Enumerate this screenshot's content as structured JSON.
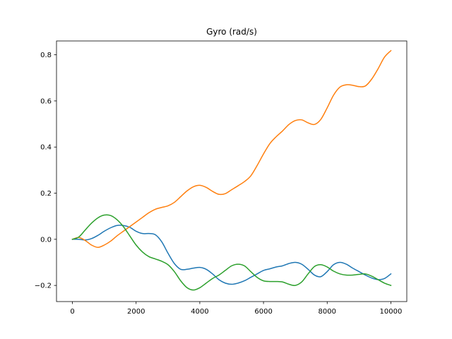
{
  "chart_data": {
    "type": "line",
    "title": "Gyro (rad/s)",
    "xlabel": "",
    "ylabel": "",
    "xlim": [
      -500,
      10500
    ],
    "ylim": [
      -0.27,
      0.86
    ],
    "xticks": [
      0,
      2000,
      4000,
      6000,
      8000,
      10000
    ],
    "xtick_labels": [
      "0",
      "2000",
      "4000",
      "6000",
      "8000",
      "10000"
    ],
    "yticks": [
      -0.2,
      0.0,
      0.2,
      0.4,
      0.6,
      0.8
    ],
    "ytick_labels": [
      "−0.2",
      "0.0",
      "0.2",
      "0.4",
      "0.6",
      "0.8"
    ],
    "grid": false,
    "legend": "none",
    "series": [
      {
        "color": "#1f77b4",
        "x": [
          0,
          200,
          400,
          600,
          800,
          1000,
          1200,
          1400,
          1600,
          1800,
          2000,
          2200,
          2400,
          2600,
          2800,
          3000,
          3200,
          3400,
          3600,
          3800,
          4000,
          4200,
          4400,
          4600,
          4800,
          5000,
          5200,
          5400,
          5600,
          5800,
          6000,
          6200,
          6400,
          6600,
          6800,
          7000,
          7200,
          7400,
          7600,
          7800,
          8000,
          8200,
          8400,
          8600,
          8800,
          9000,
          9200,
          9400,
          9600,
          9800,
          10000
        ],
        "y": [
          0.0,
          0.0,
          -0.003,
          0.003,
          0.017,
          0.035,
          0.05,
          0.06,
          0.06,
          0.052,
          0.035,
          0.025,
          0.025,
          0.02,
          -0.01,
          -0.06,
          -0.105,
          -0.13,
          -0.13,
          -0.125,
          -0.122,
          -0.13,
          -0.15,
          -0.175,
          -0.19,
          -0.195,
          -0.19,
          -0.18,
          -0.165,
          -0.15,
          -0.135,
          -0.128,
          -0.12,
          -0.115,
          -0.105,
          -0.1,
          -0.108,
          -0.13,
          -0.155,
          -0.162,
          -0.14,
          -0.11,
          -0.1,
          -0.108,
          -0.125,
          -0.14,
          -0.155,
          -0.168,
          -0.175,
          -0.17,
          -0.15
        ]
      },
      {
        "color": "#ff7f0e",
        "x": [
          0,
          200,
          400,
          600,
          800,
          1000,
          1200,
          1400,
          1600,
          1800,
          2000,
          2200,
          2400,
          2600,
          2800,
          3000,
          3200,
          3400,
          3600,
          3800,
          4000,
          4200,
          4400,
          4600,
          4800,
          5000,
          5200,
          5400,
          5600,
          5800,
          6000,
          6200,
          6400,
          6600,
          6800,
          7000,
          7200,
          7400,
          7600,
          7800,
          8000,
          8200,
          8400,
          8600,
          8800,
          9000,
          9200,
          9400,
          9600,
          9800,
          10000
        ],
        "y": [
          0.0,
          0.008,
          -0.005,
          -0.025,
          -0.035,
          -0.025,
          -0.008,
          0.015,
          0.035,
          0.055,
          0.075,
          0.095,
          0.115,
          0.13,
          0.138,
          0.145,
          0.16,
          0.185,
          0.21,
          0.228,
          0.234,
          0.225,
          0.208,
          0.195,
          0.198,
          0.215,
          0.232,
          0.25,
          0.275,
          0.32,
          0.37,
          0.415,
          0.445,
          0.47,
          0.498,
          0.515,
          0.518,
          0.505,
          0.498,
          0.52,
          0.57,
          0.625,
          0.66,
          0.67,
          0.668,
          0.662,
          0.665,
          0.695,
          0.74,
          0.79,
          0.818
        ]
      },
      {
        "color": "#2ca02c",
        "x": [
          0,
          200,
          400,
          600,
          800,
          1000,
          1200,
          1400,
          1600,
          1800,
          2000,
          2200,
          2400,
          2600,
          2800,
          3000,
          3200,
          3400,
          3600,
          3800,
          4000,
          4200,
          4400,
          4600,
          4800,
          5000,
          5200,
          5400,
          5600,
          5800,
          6000,
          6200,
          6400,
          6600,
          6800,
          7000,
          7200,
          7400,
          7600,
          7800,
          8000,
          8200,
          8400,
          8600,
          8800,
          9000,
          9200,
          9400,
          9600,
          9800,
          10000
        ],
        "y": [
          0.0,
          0.01,
          0.04,
          0.07,
          0.093,
          0.105,
          0.103,
          0.085,
          0.055,
          0.015,
          -0.025,
          -0.055,
          -0.075,
          -0.085,
          -0.095,
          -0.11,
          -0.14,
          -0.18,
          -0.21,
          -0.22,
          -0.21,
          -0.19,
          -0.17,
          -0.155,
          -0.135,
          -0.115,
          -0.108,
          -0.115,
          -0.14,
          -0.165,
          -0.18,
          -0.183,
          -0.183,
          -0.185,
          -0.195,
          -0.2,
          -0.185,
          -0.15,
          -0.118,
          -0.11,
          -0.12,
          -0.138,
          -0.15,
          -0.155,
          -0.155,
          -0.152,
          -0.15,
          -0.16,
          -0.175,
          -0.19,
          -0.2
        ]
      }
    ]
  }
}
